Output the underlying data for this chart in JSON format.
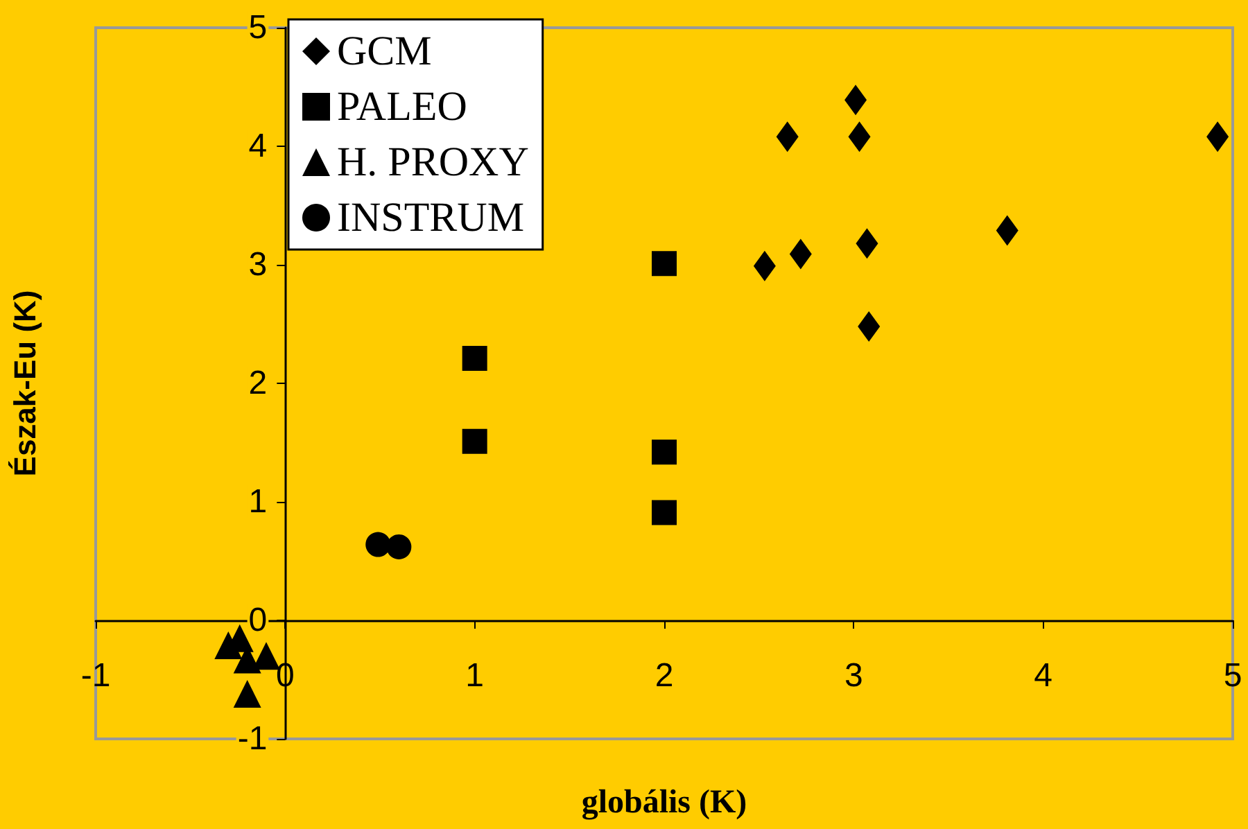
{
  "chart_data": {
    "type": "scatter",
    "xlabel": "globális (K)",
    "ylabel": "Észak-Eu (K)",
    "xlim": [
      -1,
      5
    ],
    "xticks": [
      -1,
      0,
      1,
      2,
      3,
      4,
      5
    ],
    "ylim": [
      -1,
      5
    ],
    "yticks": [
      -1,
      0,
      1,
      2,
      3,
      4,
      5
    ],
    "grid": false,
    "legend": "top left",
    "series": [
      {
        "name": "GCM",
        "color": "#000000",
        "marker": "diamond",
        "x": [
          3.01,
          2.65,
          3.03,
          4.92,
          3.81,
          2.53,
          2.72,
          3.07,
          3.08
        ],
        "values": [
          4.39,
          4.08,
          4.08,
          4.08,
          3.29,
          2.99,
          3.09,
          3.18,
          2.48
        ]
      },
      {
        "name": "PALEO",
        "color": "#000000",
        "marker": "square",
        "x": [
          1.0,
          1.0,
          2.0,
          2.0,
          2.0
        ],
        "values": [
          2.21,
          1.51,
          3.01,
          1.42,
          0.91
        ]
      },
      {
        "name": "H. PROXY",
        "color": "#000000",
        "marker": "triangle",
        "x": [
          -0.3,
          -0.24,
          -0.2,
          -0.1,
          -0.2
        ],
        "values": [
          -0.21,
          -0.15,
          -0.33,
          -0.3,
          -0.62
        ]
      },
      {
        "name": "INSTRUM",
        "color": "#000000",
        "marker": "circle",
        "x": [
          0.49,
          0.6
        ],
        "values": [
          0.64,
          0.62
        ]
      }
    ]
  }
}
